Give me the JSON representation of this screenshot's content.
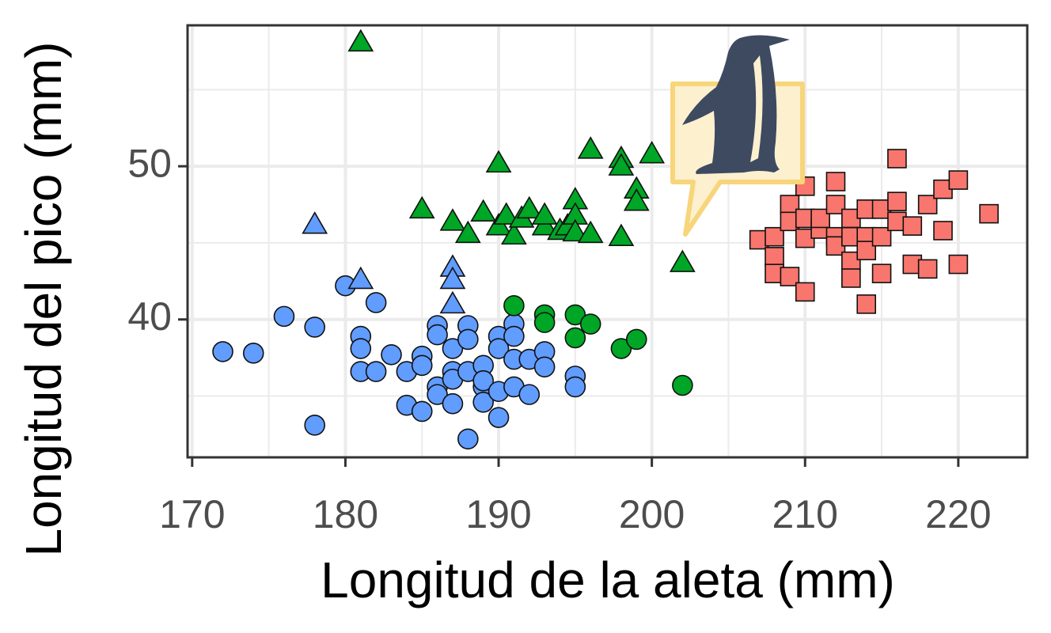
{
  "chart_data": {
    "type": "scatter",
    "xlabel": "Longitud de la aleta (mm)",
    "ylabel": "Longitud del pico (mm)",
    "xlim": [
      169.7,
      224.5
    ],
    "ylim": [
      31.0,
      59.2
    ],
    "xticks": [
      170,
      180,
      190,
      200,
      210,
      220
    ],
    "yticks": [
      40,
      50
    ],
    "x_minor_grid": [
      175,
      185,
      195,
      205,
      215
    ],
    "y_minor_grid": [
      35,
      45,
      55
    ],
    "grid": true,
    "series": [
      {
        "color": "#619cff",
        "marker": "circle",
        "x": [
          172,
          174,
          176,
          178,
          178,
          180,
          181,
          181,
          181,
          182,
          182,
          183,
          184,
          184,
          185,
          185,
          185,
          186,
          186,
          186,
          186,
          187,
          187,
          187,
          187,
          188,
          188,
          188,
          188,
          189,
          189,
          189,
          189,
          190,
          190,
          190,
          190,
          191,
          191,
          191,
          191,
          192,
          192,
          193,
          193,
          195,
          195
        ],
        "values": [
          37.9,
          37.8,
          40.2,
          39.5,
          33.1,
          42.2,
          38.9,
          38.1,
          36.6,
          41.1,
          36.6,
          37.7,
          36.6,
          34.4,
          37.6,
          37.0,
          34.0,
          39.6,
          39.0,
          35.6,
          35.1,
          38.1,
          36.6,
          36.1,
          34.5,
          39.6,
          38.7,
          32.2,
          36.6,
          37.0,
          35.6,
          34.6,
          36.0,
          38.9,
          38.1,
          35.3,
          33.6,
          39.7,
          38.9,
          37.4,
          35.6,
          37.4,
          35.1,
          37.9,
          36.9,
          36.3,
          35.6
        ]
      },
      {
        "color": "#619cff",
        "marker": "triangle",
        "x": [
          178,
          181,
          187,
          187,
          187
        ],
        "values": [
          46.2,
          42.6,
          43.4,
          42.6,
          41.0
        ]
      },
      {
        "color": "#00a625",
        "marker": "circle",
        "x": [
          191,
          193,
          193,
          195,
          195,
          196,
          198,
          199,
          202
        ],
        "values": [
          40.9,
          40.3,
          39.8,
          40.3,
          38.8,
          39.7,
          38.1,
          38.7,
          35.7
        ]
      },
      {
        "color": "#00a625",
        "marker": "triangle",
        "x": [
          181,
          185,
          187,
          188,
          189,
          190,
          190,
          190.5,
          191,
          191.5,
          192,
          193,
          193,
          194,
          194.5,
          195,
          195,
          195,
          196,
          196,
          198,
          198,
          198,
          199,
          199,
          200,
          202
        ],
        "values": [
          58.1,
          47.2,
          46.4,
          45.6,
          47.0,
          50.2,
          46.1,
          46.8,
          45.5,
          46.6,
          47.2,
          46.1,
          46.8,
          45.8,
          46.1,
          47.8,
          46.8,
          45.7,
          51.1,
          45.6,
          50.5,
          50.0,
          45.4,
          48.5,
          47.7,
          50.8,
          43.7
        ]
      },
      {
        "color": "#f8766d",
        "marker": "square",
        "x": [
          207,
          208,
          208,
          208,
          209,
          209,
          209,
          210,
          210,
          210,
          210,
          211,
          211,
          212,
          212,
          212,
          212,
          213,
          213,
          213,
          213,
          214,
          214,
          214,
          214,
          215,
          215,
          215,
          216,
          216,
          216,
          217,
          217,
          218,
          218,
          219,
          219,
          220,
          220,
          222
        ],
        "values": [
          45.2,
          45.4,
          44.1,
          43.0,
          47.5,
          46.4,
          42.8,
          48.7,
          46.6,
          45.3,
          41.8,
          45.9,
          46.6,
          49.0,
          47.5,
          45.4,
          44.8,
          46.6,
          43.8,
          42.7,
          45.4,
          47.2,
          45.4,
          44.5,
          41.0,
          47.2,
          45.4,
          43.0,
          50.5,
          47.7,
          46.4,
          46.1,
          43.6,
          47.5,
          43.3,
          48.5,
          45.8,
          49.1,
          43.6,
          46.9
        ]
      }
    ]
  }
}
